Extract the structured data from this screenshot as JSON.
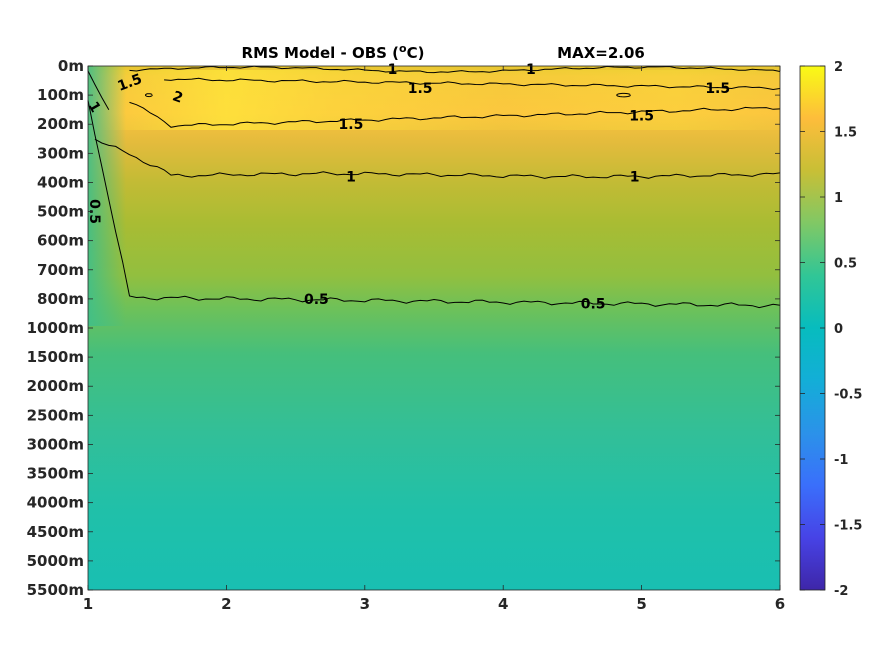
{
  "chart_data": {
    "type": "heatmap",
    "title": "RMS Model - OBS (",
    "title_unit_sup": "o",
    "title_unit": "C)",
    "max_label": "MAX=2.06",
    "x_ticks": [
      "1",
      "2",
      "3",
      "4",
      "5",
      "6"
    ],
    "xlim": [
      1,
      6
    ],
    "y_ticks": [
      "0m",
      "100m",
      "200m",
      "300m",
      "400m",
      "500m",
      "600m",
      "700m",
      "800m",
      "1000m",
      "1500m",
      "2000m",
      "2500m",
      "3000m",
      "3500m",
      "4000m",
      "4500m",
      "5000m",
      "5500m"
    ],
    "colorbar_ticks": [
      "2",
      "1.5",
      "1",
      "0.5",
      "0",
      "-0.5",
      "-1",
      "-1.5",
      "-2"
    ],
    "clim": [
      -2,
      2
    ],
    "colormap": "parula",
    "contour_levels": [
      0.5,
      1,
      1.5,
      2
    ],
    "contour_labels": [
      {
        "text": "1.5",
        "x": 1.3,
        "y": 0.55
      },
      {
        "text": "2",
        "x": 1.65,
        "y": 1.05
      },
      {
        "text": "1",
        "x": 3.2,
        "y": 0.1
      },
      {
        "text": "1",
        "x": 4.2,
        "y": 0.1
      },
      {
        "text": "1.5",
        "x": 3.4,
        "y": 0.75
      },
      {
        "text": "1.5",
        "x": 5.55,
        "y": 0.75
      },
      {
        "text": "1.5",
        "x": 2.9,
        "y": 2.0
      },
      {
        "text": "1.5",
        "x": 5.0,
        "y": 1.7
      },
      {
        "text": "1",
        "x": 1.05,
        "y": 1.4
      },
      {
        "text": "1",
        "x": 2.9,
        "y": 3.8
      },
      {
        "text": "1",
        "x": 4.95,
        "y": 3.8
      },
      {
        "text": "0.5",
        "x": 1.05,
        "y": 5.0
      },
      {
        "text": "0.5",
        "x": 2.65,
        "y": 8.0
      },
      {
        "text": "0.5",
        "x": 4.65,
        "y": 8.15
      }
    ],
    "contour_value_by_depth": [
      1.55,
      1.85,
      1.55,
      1.2,
      1.0,
      0.9,
      0.82,
      0.76,
      0.5,
      0.48,
      0.44,
      0.41,
      0.38,
      0.36,
      0.34,
      0.32,
      0.29,
      0.27,
      0.25
    ]
  }
}
